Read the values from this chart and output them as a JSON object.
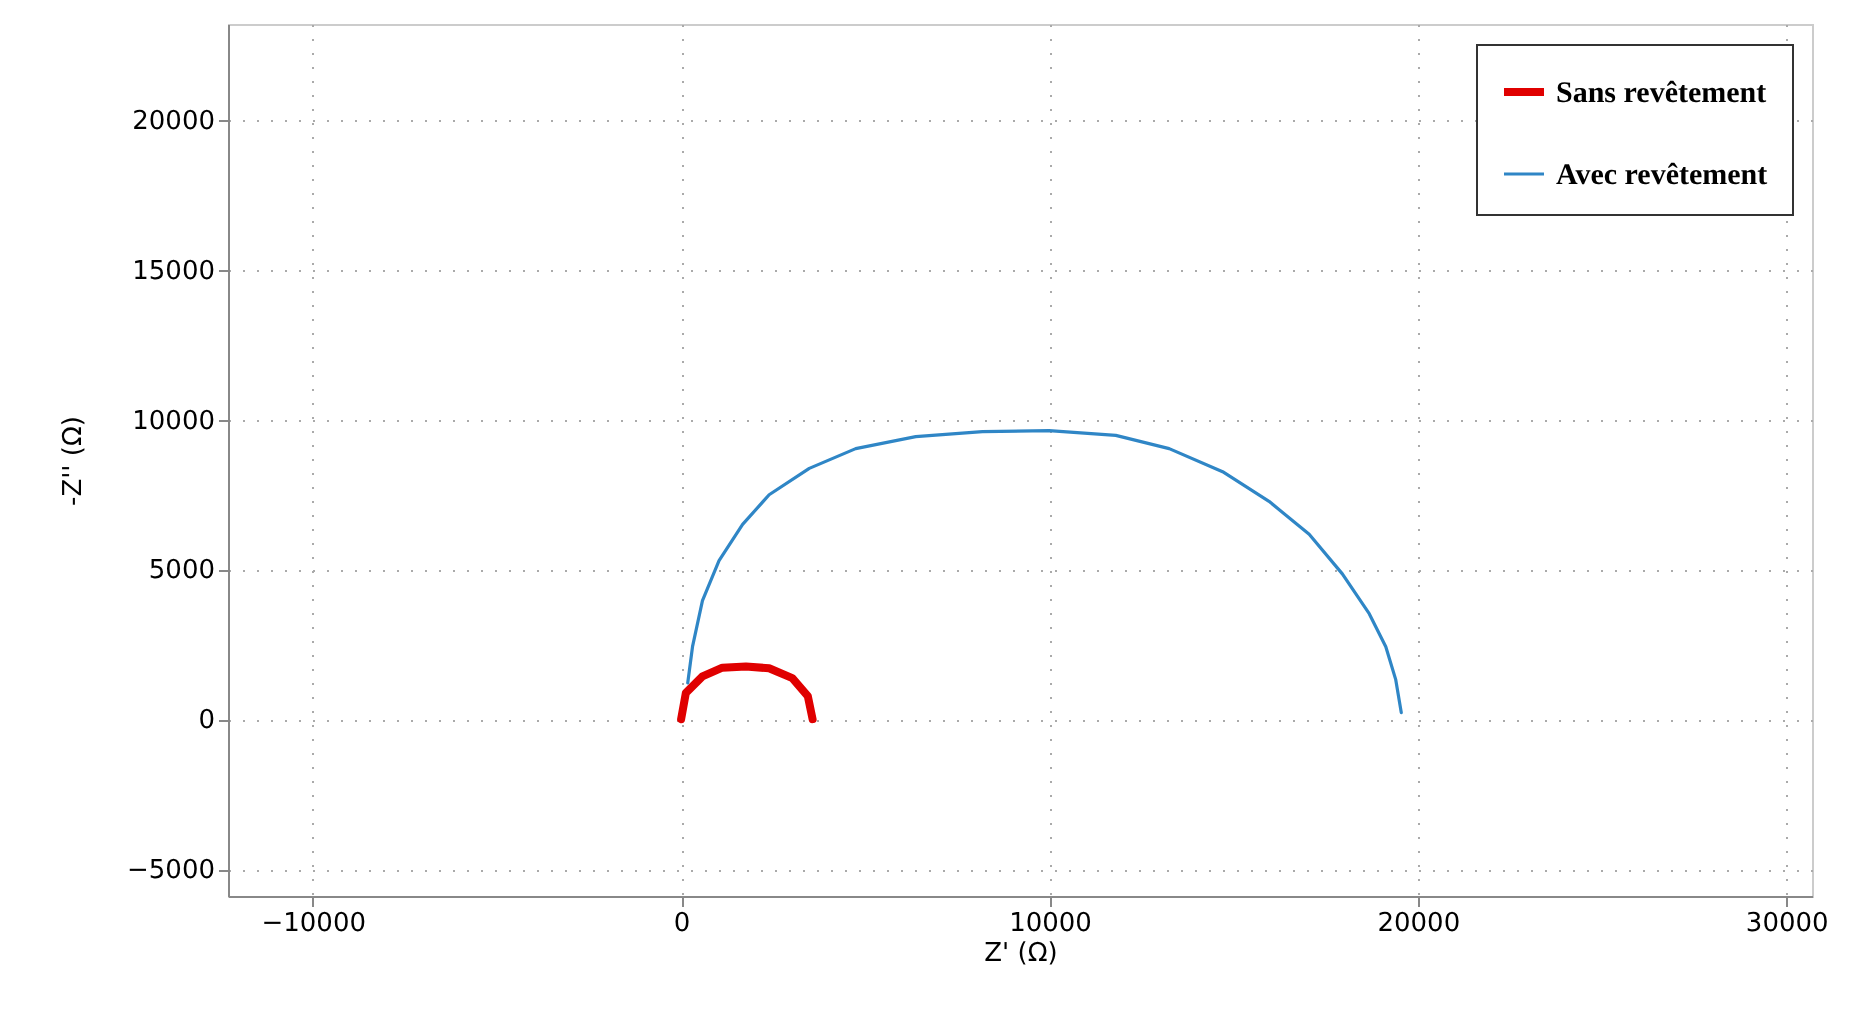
{
  "chart_data": {
    "type": "line",
    "xlabel": "Z' (Ω)",
    "ylabel": "-Z'' (Ω)",
    "xlim": [
      -12300,
      30700
    ],
    "xticks": [
      -10000,
      0,
      10000,
      20000,
      30000
    ],
    "ylim": [
      -5900,
      23200
    ],
    "yticks": [
      -5000,
      0,
      5000,
      10000,
      15000,
      20000
    ],
    "grid": true,
    "legend": "top right",
    "marker": "none",
    "line_style": "solid",
    "series": [
      {
        "name": "Sans revêtement",
        "color": "#e00000",
        "x": [
          0,
          130,
          580,
          1120,
          1760,
          2390,
          3020,
          3440,
          3570
        ],
        "values": [
          0,
          880,
          1430,
          1720,
          1760,
          1700,
          1370,
          770,
          0
        ]
      },
      {
        "name": "Avec revêtement",
        "color": "#2f86c6",
        "x": [
          180,
          310,
          580,
          1030,
          1670,
          2390,
          3480,
          4740,
          6370,
          8180,
          9990,
          11800,
          13250,
          14700,
          15960,
          17050,
          17950,
          18680,
          19130,
          19400,
          19550
        ],
        "values": [
          1210,
          2420,
          3960,
          5290,
          6500,
          7490,
          8370,
          9030,
          9430,
          9600,
          9630,
          9470,
          9030,
          8260,
          7270,
          6170,
          4850,
          3520,
          2420,
          1320,
          220
        ]
      }
    ]
  }
}
